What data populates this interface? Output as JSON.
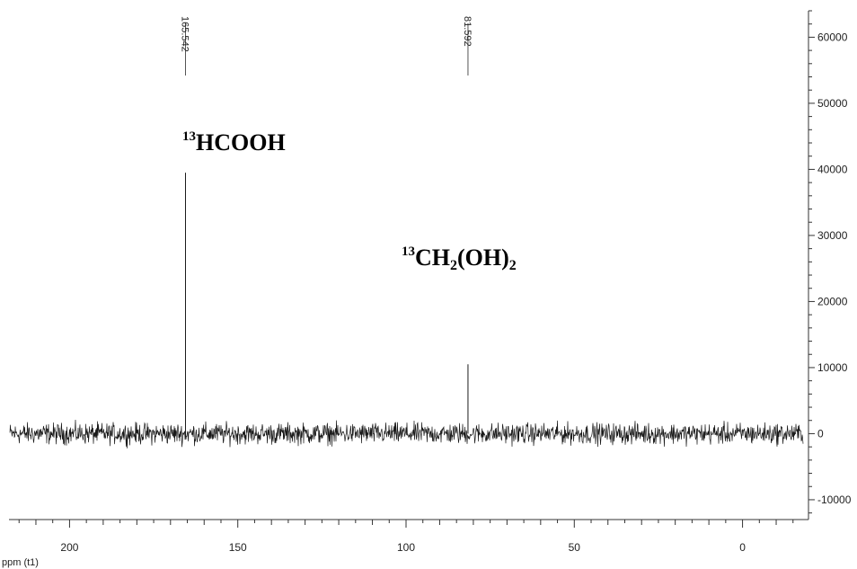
{
  "chart_data": {
    "type": "line",
    "xlabel": "ppm (t1)",
    "x_reversed": true,
    "xlim": [
      -18,
      218
    ],
    "ylim": [
      -13000,
      64000
    ],
    "x_ticks": [
      200,
      150,
      100,
      50,
      0
    ],
    "y_ticks": [
      60000,
      50000,
      40000,
      30000,
      20000,
      10000,
      0,
      -10000
    ],
    "y_tick_labels": [
      "60000",
      "50000",
      "40000",
      "30000",
      "20000",
      "10000",
      "0",
      "-10000"
    ],
    "peak_labels": [
      {
        "ppm": 165.542,
        "text": "165.542"
      },
      {
        "ppm": 81.592,
        "text": "81.592"
      }
    ],
    "peaks": [
      {
        "ppm": 165.542,
        "intensity": 39500
      },
      {
        "ppm": 81.592,
        "intensity": 10500
      }
    ],
    "noise_amplitude": 1300,
    "annotations": [
      {
        "iso": "13",
        "main": "HCOOH",
        "sub": "",
        "tail": ""
      },
      {
        "iso": "13",
        "main": "CH",
        "sub": "2",
        "tail": "(OH)",
        "sub2": "2"
      }
    ],
    "colors": {
      "trace": "#1a1a1a",
      "axis": "#333333"
    }
  }
}
